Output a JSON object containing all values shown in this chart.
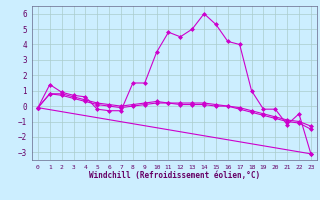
{
  "xlabel": "Windchill (Refroidissement éolien,°C)",
  "background_color": "#cceeff",
  "grid_color": "#aacccc",
  "line_color": "#cc00cc",
  "marker": "D",
  "markersize": 2,
  "linewidth": 0.8,
  "xlim": [
    -0.5,
    23.5
  ],
  "ylim": [
    -3.5,
    6.5
  ],
  "xticks": [
    0,
    1,
    2,
    3,
    4,
    5,
    6,
    7,
    8,
    9,
    10,
    11,
    12,
    13,
    14,
    15,
    16,
    17,
    18,
    19,
    20,
    21,
    22,
    23
  ],
  "yticks": [
    -3,
    -2,
    -1,
    0,
    1,
    2,
    3,
    4,
    5,
    6
  ],
  "line1_x": [
    0,
    1,
    2,
    3,
    4,
    5,
    6,
    7,
    8,
    9,
    10,
    11,
    12,
    13,
    14,
    15,
    16,
    17,
    18,
    19,
    20,
    21,
    22,
    23
  ],
  "line1_y": [
    -0.1,
    1.4,
    0.9,
    0.7,
    0.6,
    -0.2,
    -0.3,
    -0.3,
    1.5,
    1.5,
    3.5,
    4.8,
    4.5,
    5.0,
    6.0,
    5.3,
    4.2,
    4.0,
    1.0,
    -0.2,
    -0.2,
    -1.2,
    -0.5,
    -3.1
  ],
  "line2_x": [
    0,
    1,
    2,
    3,
    4,
    5,
    6,
    7,
    8,
    9,
    10,
    11,
    12,
    13,
    14,
    15,
    16,
    17,
    18,
    19,
    20,
    21,
    22,
    23
  ],
  "line2_y": [
    -0.1,
    0.8,
    0.7,
    0.5,
    0.3,
    0.1,
    0.0,
    -0.1,
    0.0,
    0.1,
    0.2,
    0.2,
    0.1,
    0.1,
    0.1,
    0.0,
    0.0,
    -0.2,
    -0.4,
    -0.6,
    -0.8,
    -1.0,
    -1.1,
    -1.5
  ],
  "line3_x": [
    0,
    1,
    2,
    3,
    4,
    5,
    6,
    7,
    8,
    9,
    10,
    11,
    12,
    13,
    14,
    15,
    16,
    17,
    18,
    19,
    20,
    21,
    22,
    23
  ],
  "line3_y": [
    -0.1,
    0.8,
    0.8,
    0.6,
    0.4,
    0.2,
    0.1,
    0.0,
    0.1,
    0.2,
    0.3,
    0.2,
    0.2,
    0.2,
    0.2,
    0.1,
    0.0,
    -0.1,
    -0.3,
    -0.5,
    -0.7,
    -0.9,
    -1.0,
    -1.3
  ],
  "line4_x": [
    0,
    23
  ],
  "line4_y": [
    -0.1,
    -3.1
  ],
  "tick_color": "#660066",
  "xlabel_color": "#660066",
  "xlabel_fontsize": 5.5,
  "tick_fontsize_x": 4.5,
  "tick_fontsize_y": 5.5
}
